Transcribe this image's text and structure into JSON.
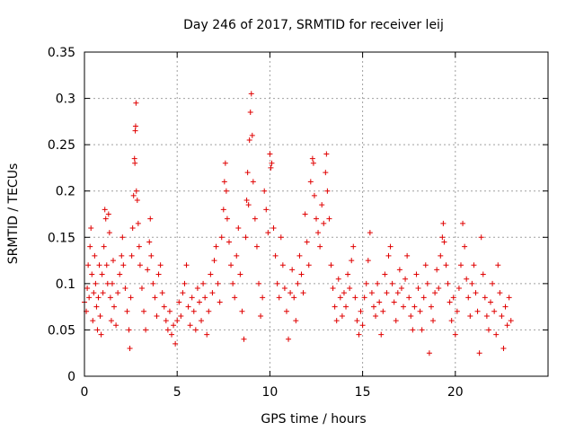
{
  "chart_data": {
    "type": "scatter",
    "title": "Day 246 of 2017, SRMTID for receiver leij",
    "xlabel": "GPS time / hours",
    "ylabel": "SRMTID / TECUs",
    "xlim": [
      0,
      25
    ],
    "ylim": [
      0,
      0.35
    ],
    "xticks": [
      0,
      5,
      10,
      15,
      20
    ],
    "yticks": [
      0,
      0.05,
      0.1,
      0.15,
      0.2,
      0.25,
      0.3,
      0.35
    ],
    "xtick_labels": [
      "0",
      "5",
      "10",
      "15",
      "20"
    ],
    "ytick_labels": [
      "0",
      "0.05",
      "0.1",
      "0.15",
      "0.2",
      "0.25",
      "0.3",
      "0.35"
    ],
    "grid": true,
    "marker": "+",
    "color": "#e00000",
    "series": [
      {
        "name": "SRMTID",
        "points": [
          [
            0.0,
            0.08
          ],
          [
            0.1,
            0.07
          ],
          [
            0.15,
            0.095
          ],
          [
            0.2,
            0.12
          ],
          [
            0.25,
            0.085
          ],
          [
            0.3,
            0.14
          ],
          [
            0.35,
            0.16
          ],
          [
            0.4,
            0.11
          ],
          [
            0.45,
            0.06
          ],
          [
            0.5,
            0.09
          ],
          [
            0.55,
            0.13
          ],
          [
            0.6,
            0.1
          ],
          [
            0.65,
            0.075
          ],
          [
            0.7,
            0.05
          ],
          [
            0.75,
            0.085
          ],
          [
            0.8,
            0.12
          ],
          [
            0.85,
            0.065
          ],
          [
            0.9,
            0.045
          ],
          [
            0.95,
            0.11
          ],
          [
            1.0,
            0.09
          ],
          [
            1.05,
            0.14
          ],
          [
            1.1,
            0.18
          ],
          [
            1.15,
            0.17
          ],
          [
            1.2,
            0.12
          ],
          [
            1.25,
            0.1
          ],
          [
            1.3,
            0.175
          ],
          [
            1.35,
            0.155
          ],
          [
            1.4,
            0.085
          ],
          [
            1.45,
            0.06
          ],
          [
            1.5,
            0.1
          ],
          [
            1.55,
            0.125
          ],
          [
            1.6,
            0.075
          ],
          [
            1.7,
            0.055
          ],
          [
            1.8,
            0.09
          ],
          [
            1.9,
            0.11
          ],
          [
            2.0,
            0.13
          ],
          [
            2.05,
            0.15
          ],
          [
            2.1,
            0.12
          ],
          [
            2.2,
            0.095
          ],
          [
            2.3,
            0.07
          ],
          [
            2.4,
            0.05
          ],
          [
            2.45,
            0.03
          ],
          [
            2.5,
            0.085
          ],
          [
            2.55,
            0.13
          ],
          [
            2.6,
            0.16
          ],
          [
            2.65,
            0.195
          ],
          [
            2.7,
            0.235
          ],
          [
            2.72,
            0.23
          ],
          [
            2.74,
            0.265
          ],
          [
            2.76,
            0.27
          ],
          [
            2.78,
            0.295
          ],
          [
            2.8,
            0.2
          ],
          [
            2.85,
            0.19
          ],
          [
            2.9,
            0.165
          ],
          [
            2.95,
            0.14
          ],
          [
            3.0,
            0.12
          ],
          [
            3.1,
            0.095
          ],
          [
            3.2,
            0.07
          ],
          [
            3.3,
            0.05
          ],
          [
            3.4,
            0.115
          ],
          [
            3.5,
            0.145
          ],
          [
            3.55,
            0.17
          ],
          [
            3.6,
            0.13
          ],
          [
            3.7,
            0.1
          ],
          [
            3.8,
            0.085
          ],
          [
            3.9,
            0.065
          ],
          [
            4.0,
            0.11
          ],
          [
            4.1,
            0.12
          ],
          [
            4.2,
            0.09
          ],
          [
            4.3,
            0.075
          ],
          [
            4.4,
            0.06
          ],
          [
            4.5,
            0.05
          ],
          [
            4.6,
            0.07
          ],
          [
            4.7,
            0.045
          ],
          [
            4.8,
            0.055
          ],
          [
            4.9,
            0.035
          ],
          [
            5.0,
            0.06
          ],
          [
            5.1,
            0.08
          ],
          [
            5.2,
            0.065
          ],
          [
            5.3,
            0.09
          ],
          [
            5.4,
            0.1
          ],
          [
            5.5,
            0.12
          ],
          [
            5.6,
            0.075
          ],
          [
            5.7,
            0.055
          ],
          [
            5.8,
            0.085
          ],
          [
            5.9,
            0.07
          ],
          [
            6.0,
            0.05
          ],
          [
            6.1,
            0.095
          ],
          [
            6.2,
            0.08
          ],
          [
            6.3,
            0.06
          ],
          [
            6.4,
            0.1
          ],
          [
            6.5,
            0.085
          ],
          [
            6.6,
            0.045
          ],
          [
            6.7,
            0.07
          ],
          [
            6.8,
            0.11
          ],
          [
            6.9,
            0.09
          ],
          [
            7.0,
            0.125
          ],
          [
            7.1,
            0.14
          ],
          [
            7.2,
            0.1
          ],
          [
            7.3,
            0.08
          ],
          [
            7.4,
            0.15
          ],
          [
            7.5,
            0.18
          ],
          [
            7.55,
            0.21
          ],
          [
            7.6,
            0.23
          ],
          [
            7.65,
            0.2
          ],
          [
            7.7,
            0.17
          ],
          [
            7.8,
            0.145
          ],
          [
            7.9,
            0.12
          ],
          [
            8.0,
            0.1
          ],
          [
            8.1,
            0.085
          ],
          [
            8.2,
            0.13
          ],
          [
            8.3,
            0.16
          ],
          [
            8.4,
            0.11
          ],
          [
            8.5,
            0.07
          ],
          [
            8.6,
            0.04
          ],
          [
            8.7,
            0.15
          ],
          [
            8.75,
            0.19
          ],
          [
            8.8,
            0.22
          ],
          [
            8.85,
            0.185
          ],
          [
            8.9,
            0.255
          ],
          [
            8.95,
            0.285
          ],
          [
            9.0,
            0.305
          ],
          [
            9.05,
            0.26
          ],
          [
            9.1,
            0.21
          ],
          [
            9.2,
            0.17
          ],
          [
            9.3,
            0.14
          ],
          [
            9.4,
            0.1
          ],
          [
            9.5,
            0.065
          ],
          [
            9.6,
            0.085
          ],
          [
            9.7,
            0.2
          ],
          [
            9.8,
            0.18
          ],
          [
            9.9,
            0.155
          ],
          [
            10.0,
            0.24
          ],
          [
            10.05,
            0.225
          ],
          [
            10.1,
            0.23
          ],
          [
            10.2,
            0.16
          ],
          [
            10.3,
            0.13
          ],
          [
            10.4,
            0.1
          ],
          [
            10.5,
            0.085
          ],
          [
            10.6,
            0.15
          ],
          [
            10.7,
            0.12
          ],
          [
            10.8,
            0.095
          ],
          [
            10.9,
            0.07
          ],
          [
            11.0,
            0.04
          ],
          [
            11.1,
            0.09
          ],
          [
            11.2,
            0.115
          ],
          [
            11.3,
            0.085
          ],
          [
            11.4,
            0.06
          ],
          [
            11.5,
            0.1
          ],
          [
            11.6,
            0.13
          ],
          [
            11.7,
            0.11
          ],
          [
            11.8,
            0.09
          ],
          [
            11.9,
            0.175
          ],
          [
            12.0,
            0.145
          ],
          [
            12.1,
            0.12
          ],
          [
            12.2,
            0.21
          ],
          [
            12.3,
            0.235
          ],
          [
            12.35,
            0.23
          ],
          [
            12.4,
            0.195
          ],
          [
            12.5,
            0.17
          ],
          [
            12.6,
            0.155
          ],
          [
            12.7,
            0.14
          ],
          [
            12.8,
            0.185
          ],
          [
            12.9,
            0.165
          ],
          [
            13.0,
            0.22
          ],
          [
            13.05,
            0.24
          ],
          [
            13.1,
            0.2
          ],
          [
            13.2,
            0.17
          ],
          [
            13.3,
            0.12
          ],
          [
            13.4,
            0.095
          ],
          [
            13.5,
            0.075
          ],
          [
            13.6,
            0.06
          ],
          [
            13.7,
            0.105
          ],
          [
            13.8,
            0.085
          ],
          [
            13.9,
            0.065
          ],
          [
            14.0,
            0.09
          ],
          [
            14.1,
            0.075
          ],
          [
            14.2,
            0.11
          ],
          [
            14.3,
            0.095
          ],
          [
            14.4,
            0.125
          ],
          [
            14.5,
            0.14
          ],
          [
            14.6,
            0.085
          ],
          [
            14.7,
            0.06
          ],
          [
            14.8,
            0.045
          ],
          [
            14.9,
            0.07
          ],
          [
            15.0,
            0.055
          ],
          [
            15.1,
            0.085
          ],
          [
            15.2,
            0.1
          ],
          [
            15.3,
            0.125
          ],
          [
            15.4,
            0.155
          ],
          [
            15.5,
            0.09
          ],
          [
            15.6,
            0.075
          ],
          [
            15.7,
            0.065
          ],
          [
            15.8,
            0.1
          ],
          [
            15.9,
            0.08
          ],
          [
            16.0,
            0.045
          ],
          [
            16.1,
            0.07
          ],
          [
            16.2,
            0.11
          ],
          [
            16.3,
            0.09
          ],
          [
            16.4,
            0.13
          ],
          [
            16.5,
            0.14
          ],
          [
            16.6,
            0.1
          ],
          [
            16.7,
            0.08
          ],
          [
            16.8,
            0.06
          ],
          [
            16.9,
            0.09
          ],
          [
            17.0,
            0.115
          ],
          [
            17.1,
            0.095
          ],
          [
            17.2,
            0.075
          ],
          [
            17.3,
            0.105
          ],
          [
            17.4,
            0.13
          ],
          [
            17.5,
            0.085
          ],
          [
            17.6,
            0.065
          ],
          [
            17.7,
            0.05
          ],
          [
            17.8,
            0.075
          ],
          [
            17.9,
            0.11
          ],
          [
            18.0,
            0.095
          ],
          [
            18.1,
            0.07
          ],
          [
            18.2,
            0.05
          ],
          [
            18.3,
            0.085
          ],
          [
            18.4,
            0.12
          ],
          [
            18.5,
            0.1
          ],
          [
            18.6,
            0.025
          ],
          [
            18.7,
            0.075
          ],
          [
            18.8,
            0.06
          ],
          [
            18.9,
            0.09
          ],
          [
            19.0,
            0.115
          ],
          [
            19.1,
            0.095
          ],
          [
            19.2,
            0.13
          ],
          [
            19.3,
            0.15
          ],
          [
            19.35,
            0.165
          ],
          [
            19.4,
            0.145
          ],
          [
            19.5,
            0.12
          ],
          [
            19.6,
            0.1
          ],
          [
            19.7,
            0.08
          ],
          [
            19.8,
            0.06
          ],
          [
            19.9,
            0.085
          ],
          [
            20.0,
            0.045
          ],
          [
            20.1,
            0.07
          ],
          [
            20.2,
            0.095
          ],
          [
            20.3,
            0.12
          ],
          [
            20.4,
            0.165
          ],
          [
            20.5,
            0.14
          ],
          [
            20.6,
            0.105
          ],
          [
            20.7,
            0.085
          ],
          [
            20.8,
            0.065
          ],
          [
            20.9,
            0.1
          ],
          [
            21.0,
            0.12
          ],
          [
            21.1,
            0.09
          ],
          [
            21.2,
            0.07
          ],
          [
            21.3,
            0.025
          ],
          [
            21.4,
            0.15
          ],
          [
            21.5,
            0.11
          ],
          [
            21.6,
            0.085
          ],
          [
            21.7,
            0.065
          ],
          [
            21.8,
            0.05
          ],
          [
            21.9,
            0.08
          ],
          [
            22.0,
            0.1
          ],
          [
            22.1,
            0.07
          ],
          [
            22.2,
            0.045
          ],
          [
            22.3,
            0.12
          ],
          [
            22.4,
            0.09
          ],
          [
            22.5,
            0.065
          ],
          [
            22.6,
            0.03
          ],
          [
            22.7,
            0.075
          ],
          [
            22.8,
            0.055
          ],
          [
            22.9,
            0.085
          ],
          [
            23.0,
            0.06
          ]
        ]
      }
    ]
  }
}
